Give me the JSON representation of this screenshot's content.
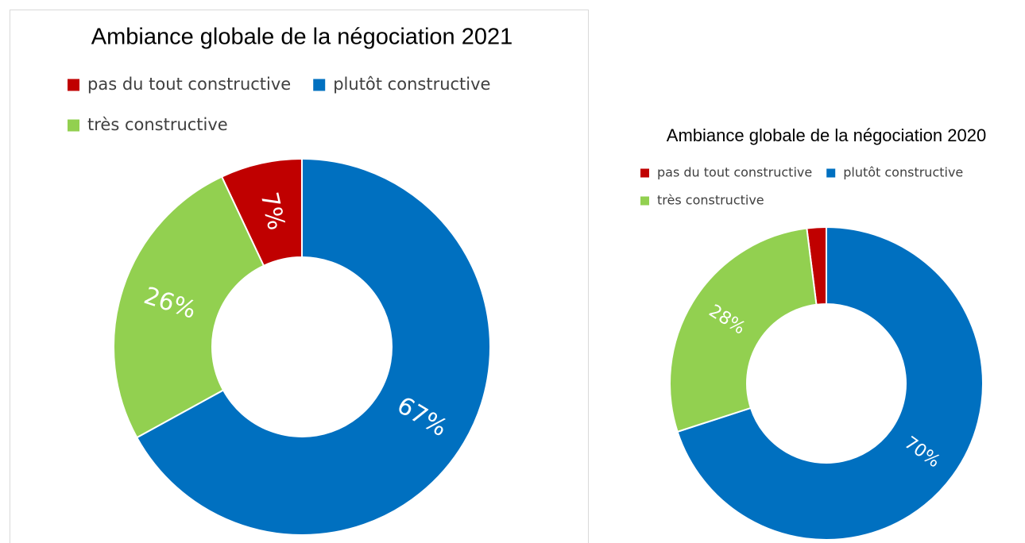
{
  "chart_data": [
    {
      "type": "pie",
      "title": "Ambiance globale de la négociation 2021",
      "categories": [
        "pas du tout constructive",
        "plutôt constructive",
        "très constructive"
      ],
      "values": [
        7,
        67,
        26
      ],
      "value_labels": [
        "7%",
        "67%",
        "26%"
      ],
      "colors": [
        "#c00000",
        "#0070c0",
        "#92d050"
      ]
    },
    {
      "type": "pie",
      "title": "Ambiance globale de la négociation 2020",
      "categories": [
        "pas du tout constructive",
        "plutôt constructive",
        "très constructive"
      ],
      "values": [
        2,
        70,
        28
      ],
      "value_labels": [
        null,
        "70%",
        "28%"
      ],
      "colors": [
        "#c00000",
        "#0070c0",
        "#92d050"
      ]
    }
  ]
}
